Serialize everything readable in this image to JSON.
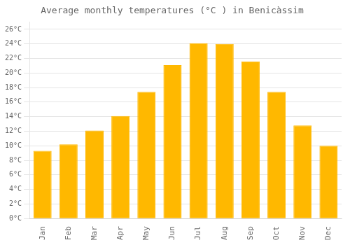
{
  "chart_data": {
    "type": "bar",
    "title": "Average monthly temperatures (°C ) in Benicàssim",
    "categories": [
      "Jan",
      "Feb",
      "Mar",
      "Apr",
      "May",
      "Jun",
      "Jul",
      "Aug",
      "Sep",
      "Oct",
      "Nov",
      "Dec"
    ],
    "values": [
      9.3,
      10.2,
      12.1,
      14.1,
      17.4,
      21.1,
      24.1,
      24.0,
      21.6,
      17.4,
      12.8,
      10.0
    ],
    "color": "#FFB800",
    "ylim": [
      0,
      27
    ],
    "yticks": [
      {
        "value": 0,
        "label": "0°C"
      },
      {
        "value": 2,
        "label": "2°C"
      },
      {
        "value": 4,
        "label": "4°C"
      },
      {
        "value": 6,
        "label": "6°C"
      },
      {
        "value": 8,
        "label": "8°C"
      },
      {
        "value": 10,
        "label": "10°C"
      },
      {
        "value": 12,
        "label": "12°C"
      },
      {
        "value": 14,
        "label": "14°C"
      },
      {
        "value": 16,
        "label": "16°C"
      },
      {
        "value": 18,
        "label": "18°C"
      },
      {
        "value": 20,
        "label": "20°C"
      },
      {
        "value": 22,
        "label": "22°C"
      },
      {
        "value": 24,
        "label": "24°C"
      },
      {
        "value": 26,
        "label": "26°C"
      }
    ],
    "grid": true
  }
}
